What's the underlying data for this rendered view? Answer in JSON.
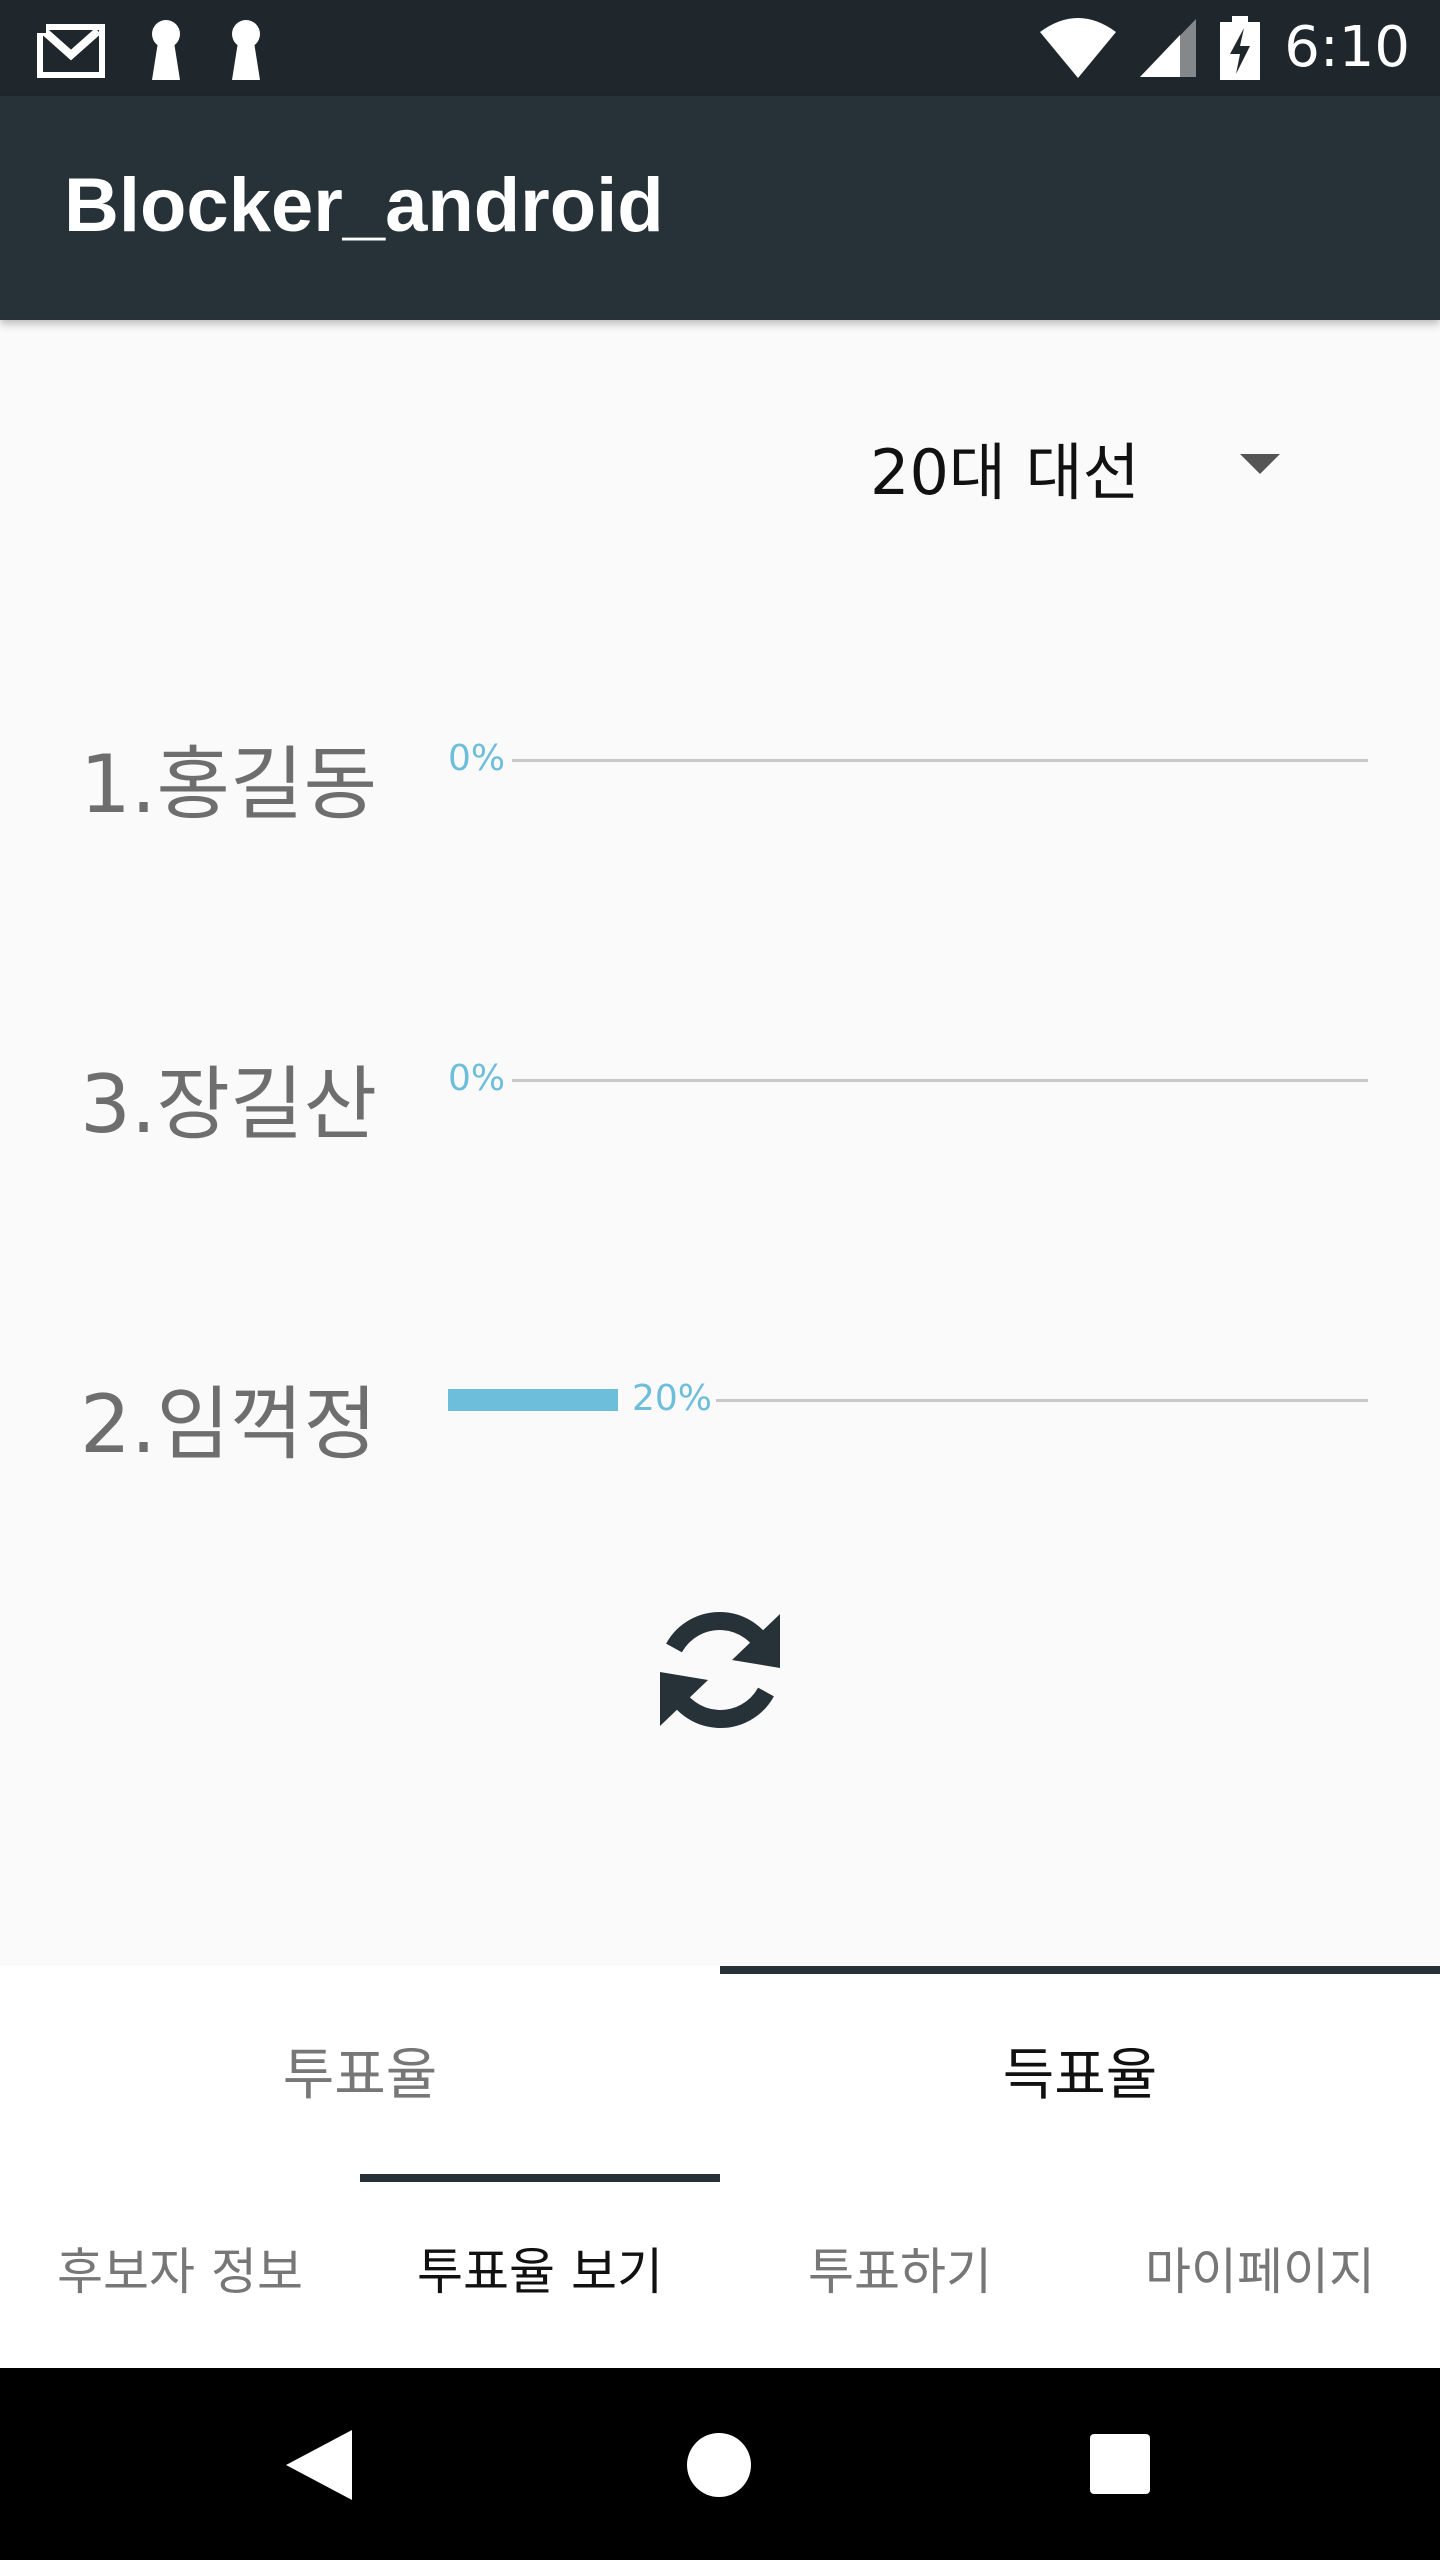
{
  "status_bar": {
    "time": "6:10",
    "icons_left": [
      "gmail-icon",
      "keyhole-icon",
      "keyhole-icon"
    ],
    "icons_right": [
      "wifi-icon",
      "signal-icon",
      "battery-charging-icon"
    ]
  },
  "app_bar": {
    "title": "Blocker_android"
  },
  "spinner": {
    "selected": "20대 대선"
  },
  "results": [
    {
      "label": "1.홍길동",
      "percent_text": "0%",
      "percent": 0
    },
    {
      "label": "3.장길산",
      "percent_text": "0%",
      "percent": 0
    },
    {
      "label": "2.임꺽정",
      "percent_text": "20%",
      "percent": 20
    }
  ],
  "tabs": [
    {
      "label": "투표율",
      "active": false
    },
    {
      "label": "득표율",
      "active": true
    }
  ],
  "bottom_nav": [
    {
      "label": "후보자 정보"
    },
    {
      "label": "투표율 보기"
    },
    {
      "label": "투표하기"
    },
    {
      "label": "마이페이지"
    }
  ],
  "colors": {
    "app_bar": "#263238",
    "status_bar": "#1f272d",
    "bar": "#6dbedb",
    "track": "#c8c8c8"
  }
}
